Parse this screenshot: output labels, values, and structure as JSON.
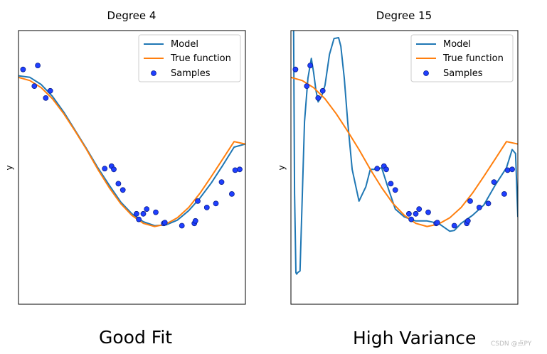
{
  "chart_data": [
    {
      "type": "line",
      "title": "Degree 4",
      "ylabel": "y",
      "xlim": [
        0,
        1
      ],
      "ylim": [
        -2.0,
        1.45
      ],
      "legend": {
        "placement": "top-right",
        "entries": [
          "Model",
          "True function",
          "Samples"
        ]
      },
      "series": [
        {
          "name": "Model",
          "kind": "line",
          "color": "#1f77b4",
          "x": [
            0,
            0.05,
            0.1,
            0.15,
            0.2,
            0.25,
            0.3,
            0.35,
            0.4,
            0.45,
            0.5,
            0.55,
            0.6,
            0.65,
            0.7,
            0.75,
            0.8,
            0.85,
            0.9,
            0.95,
            1.0
          ],
          "y": [
            0.88,
            0.86,
            0.77,
            0.62,
            0.42,
            0.19,
            -0.04,
            -0.28,
            -0.5,
            -0.71,
            -0.86,
            -0.96,
            -1.01,
            -1.0,
            -0.94,
            -0.82,
            -0.66,
            -0.47,
            -0.25,
            -0.02,
            0.02
          ]
        },
        {
          "name": "True function",
          "kind": "line",
          "color": "#ff7f0e",
          "x": [
            0,
            0.05,
            0.1,
            0.15,
            0.2,
            0.25,
            0.3,
            0.35,
            0.4,
            0.45,
            0.5,
            0.55,
            0.6,
            0.65,
            0.7,
            0.75,
            0.8,
            0.85,
            0.9,
            0.95,
            1.0
          ],
          "y": [
            0.86,
            0.82,
            0.73,
            0.59,
            0.4,
            0.18,
            -0.05,
            -0.3,
            -0.53,
            -0.73,
            -0.88,
            -0.98,
            -1.02,
            -0.99,
            -0.91,
            -0.78,
            -0.6,
            -0.39,
            -0.17,
            0.05,
            0.02
          ]
        },
        {
          "name": "Samples",
          "kind": "scatter",
          "color": "#1f3fff",
          "x": [
            0.02,
            0.07,
            0.085,
            0.12,
            0.14,
            0.38,
            0.41,
            0.42,
            0.44,
            0.46,
            0.52,
            0.53,
            0.55,
            0.565,
            0.605,
            0.64,
            0.645,
            0.72,
            0.775,
            0.78,
            0.79,
            0.83,
            0.87,
            0.895,
            0.94,
            0.955,
            0.975
          ],
          "y": [
            0.96,
            0.75,
            1.01,
            0.6,
            0.69,
            -0.29,
            -0.26,
            -0.3,
            -0.48,
            -0.56,
            -0.86,
            -0.93,
            -0.86,
            -0.8,
            -0.84,
            -0.98,
            -0.97,
            -1.01,
            -0.98,
            -0.95,
            -0.7,
            -0.78,
            -0.73,
            -0.46,
            -0.61,
            -0.31,
            -0.3
          ]
        }
      ]
    },
    {
      "type": "line",
      "title": "Degree 15",
      "ylabel": "y",
      "xlim": [
        0,
        1
      ],
      "ylim": [
        -2.0,
        1.45
      ],
      "legend": {
        "placement": "top-right",
        "entries": [
          "Model",
          "True function",
          "Samples"
        ]
      },
      "series": [
        {
          "name": "Model",
          "kind": "line",
          "color": "#1f77b4",
          "x": [
            0.012,
            0.016,
            0.022,
            0.025,
            0.03,
            0.04,
            0.06,
            0.075,
            0.09,
            0.1,
            0.11,
            0.12,
            0.135,
            0.15,
            0.17,
            0.19,
            0.21,
            0.22,
            0.235,
            0.25,
            0.27,
            0.3,
            0.33,
            0.35,
            0.37,
            0.4,
            0.43,
            0.46,
            0.5,
            0.55,
            0.6,
            0.65,
            0.7,
            0.72,
            0.75,
            0.8,
            0.85,
            0.9,
            0.95,
            0.975,
            0.99,
            1.0
          ],
          "y": [
            1.45,
            -0.6,
            -1.6,
            -1.62,
            -1.6,
            -1.58,
            0.3,
            0.85,
            1.1,
            0.92,
            0.7,
            0.55,
            0.62,
            0.76,
            1.15,
            1.35,
            1.36,
            1.25,
            0.85,
            0.3,
            -0.3,
            -0.7,
            -0.52,
            -0.3,
            -0.3,
            -0.28,
            -0.55,
            -0.8,
            -0.9,
            -0.95,
            -0.95,
            -0.98,
            -1.08,
            -1.07,
            -0.98,
            -0.88,
            -0.75,
            -0.5,
            -0.28,
            -0.05,
            -0.1,
            -0.9
          ]
        },
        {
          "name": "True function",
          "kind": "line",
          "color": "#ff7f0e",
          "x": [
            0,
            0.05,
            0.1,
            0.15,
            0.2,
            0.25,
            0.3,
            0.35,
            0.4,
            0.45,
            0.5,
            0.55,
            0.6,
            0.65,
            0.7,
            0.75,
            0.8,
            0.85,
            0.9,
            0.95,
            1.0
          ],
          "y": [
            0.86,
            0.82,
            0.73,
            0.59,
            0.4,
            0.18,
            -0.05,
            -0.3,
            -0.53,
            -0.73,
            -0.88,
            -0.98,
            -1.02,
            -0.99,
            -0.91,
            -0.78,
            -0.6,
            -0.39,
            -0.17,
            0.05,
            0.02
          ]
        },
        {
          "name": "Samples",
          "kind": "scatter",
          "color": "#1f3fff",
          "x": [
            0.02,
            0.07,
            0.085,
            0.12,
            0.14,
            0.38,
            0.41,
            0.42,
            0.44,
            0.46,
            0.52,
            0.53,
            0.55,
            0.565,
            0.605,
            0.64,
            0.645,
            0.72,
            0.775,
            0.78,
            0.79,
            0.83,
            0.87,
            0.895,
            0.94,
            0.955,
            0.975
          ],
          "y": [
            0.96,
            0.75,
            1.01,
            0.6,
            0.69,
            -0.29,
            -0.26,
            -0.3,
            -0.48,
            -0.56,
            -0.86,
            -0.93,
            -0.86,
            -0.8,
            -0.84,
            -0.98,
            -0.97,
            -1.01,
            -0.98,
            -0.95,
            -0.7,
            -0.78,
            -0.73,
            -0.46,
            -0.61,
            -0.31,
            -0.3
          ]
        }
      ]
    }
  ],
  "captions": {
    "left": "Good Fit",
    "right": "High Variance"
  },
  "watermark": "CSDN @点PY"
}
